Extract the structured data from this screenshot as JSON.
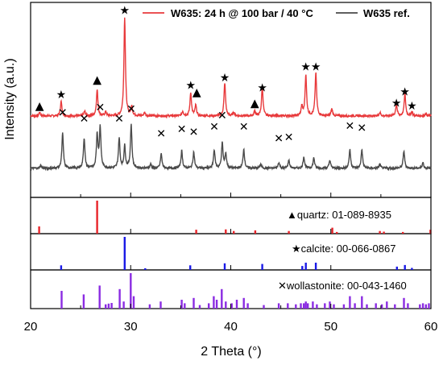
{
  "chart_data": {
    "type": "line",
    "xlabel": "2 Theta (°)",
    "ylabel": "Intensity (a.u.)",
    "xlim": [
      20,
      60
    ],
    "x_ticks": [
      20,
      30,
      40,
      50,
      60
    ],
    "legend_placement": "top-right",
    "series": [
      {
        "name": "W635: 24 h @ 100 bar / 40 °C",
        "color": "#e8393b",
        "baseline": 140,
        "peaks": [
          [
            20.9,
            6
          ],
          [
            23.05,
            25
          ],
          [
            25.4,
            8
          ],
          [
            26.65,
            45
          ],
          [
            27.5,
            7
          ],
          [
            29.4,
            170
          ],
          [
            30.1,
            16
          ],
          [
            31.4,
            6
          ],
          [
            35.2,
            8
          ],
          [
            36.0,
            40
          ],
          [
            36.5,
            18
          ],
          [
            39.4,
            57
          ],
          [
            40.3,
            6
          ],
          [
            42.4,
            8
          ],
          [
            43.15,
            50
          ],
          [
            47.1,
            16
          ],
          [
            47.5,
            70
          ],
          [
            48.5,
            74
          ],
          [
            50.1,
            12
          ],
          [
            54.9,
            6
          ],
          [
            56.55,
            20
          ],
          [
            57.4,
            38
          ],
          [
            58.1,
            7
          ],
          [
            59.5,
            4
          ]
        ],
        "markers": [
          {
            "x": 20.9,
            "y": 158,
            "symbol": "▲",
            "phase": "quartz"
          },
          {
            "x": 23.05,
            "y": 177,
            "symbol": "★",
            "phase": "calcite"
          },
          {
            "x": 26.65,
            "y": 203,
            "symbol": "▲",
            "phase": "quartz"
          },
          {
            "x": 29.4,
            "y": 322,
            "symbol": "★",
            "phase": "calcite"
          },
          {
            "x": 36.0,
            "y": 193,
            "symbol": "★",
            "phase": "calcite"
          },
          {
            "x": 36.6,
            "y": 181,
            "symbol": "▲",
            "phase": "quartz"
          },
          {
            "x": 39.4,
            "y": 206,
            "symbol": "★",
            "phase": "calcite"
          },
          {
            "x": 42.4,
            "y": 163,
            "symbol": "▲",
            "phase": "quartz"
          },
          {
            "x": 43.15,
            "y": 189,
            "symbol": "★",
            "phase": "calcite"
          },
          {
            "x": 47.5,
            "y": 225,
            "symbol": "★",
            "phase": "calcite"
          },
          {
            "x": 48.5,
            "y": 225,
            "symbol": "★",
            "phase": "calcite"
          },
          {
            "x": 56.55,
            "y": 163,
            "symbol": "★",
            "phase": "calcite"
          },
          {
            "x": 57.4,
            "y": 182,
            "symbol": "★",
            "phase": "calcite"
          },
          {
            "x": 58.1,
            "y": 158,
            "symbol": "★",
            "phase": "calcite"
          }
        ]
      },
      {
        "name": "W635 ref.",
        "color": "#4a4a4a",
        "baseline": 50,
        "peaks": [
          [
            21.0,
            5
          ],
          [
            23.2,
            60
          ],
          [
            25.35,
            52
          ],
          [
            26.65,
            58
          ],
          [
            26.95,
            70
          ],
          [
            28.85,
            52
          ],
          [
            29.4,
            38
          ],
          [
            30.05,
            75
          ],
          [
            32.0,
            7
          ],
          [
            33.05,
            25
          ],
          [
            35.1,
            30
          ],
          [
            36.3,
            28
          ],
          [
            38.35,
            32
          ],
          [
            39.15,
            43
          ],
          [
            39.5,
            25
          ],
          [
            41.3,
            33
          ],
          [
            43.0,
            7
          ],
          [
            44.8,
            10
          ],
          [
            45.8,
            14
          ],
          [
            47.3,
            20
          ],
          [
            48.3,
            18
          ],
          [
            49.9,
            14
          ],
          [
            51.9,
            32
          ],
          [
            53.1,
            32
          ],
          [
            54.9,
            7
          ],
          [
            57.3,
            30
          ],
          [
            59.2,
            10
          ]
        ],
        "markers": [
          {
            "x": 23.2,
            "y": 146,
            "symbol": "✕",
            "phase": "wollastonite"
          },
          {
            "x": 25.35,
            "y": 136,
            "symbol": "✕",
            "phase": "wollastonite"
          },
          {
            "x": 26.95,
            "y": 155,
            "symbol": "✕",
            "phase": "wollastonite"
          },
          {
            "x": 28.85,
            "y": 136,
            "symbol": "✕",
            "phase": "wollastonite"
          },
          {
            "x": 30.05,
            "y": 152,
            "symbol": "✕",
            "phase": "wollastonite"
          },
          {
            "x": 33.05,
            "y": 110,
            "symbol": "✕",
            "phase": "wollastonite"
          },
          {
            "x": 35.1,
            "y": 118,
            "symbol": "✕",
            "phase": "wollastonite"
          },
          {
            "x": 36.3,
            "y": 113,
            "symbol": "✕",
            "phase": "wollastonite"
          },
          {
            "x": 38.35,
            "y": 122,
            "symbol": "✕",
            "phase": "wollastonite"
          },
          {
            "x": 39.15,
            "y": 141,
            "symbol": "✕",
            "phase": "wollastonite"
          },
          {
            "x": 41.3,
            "y": 122,
            "symbol": "✕",
            "phase": "wollastonite"
          },
          {
            "x": 44.8,
            "y": 102,
            "symbol": "✕",
            "phase": "wollastonite"
          },
          {
            "x": 45.8,
            "y": 104,
            "symbol": "✕",
            "phase": "wollastonite"
          },
          {
            "x": 51.9,
            "y": 123,
            "symbol": "✕",
            "phase": "wollastonite"
          },
          {
            "x": 53.1,
            "y": 120,
            "symbol": "✕",
            "phase": "wollastonite"
          }
        ]
      }
    ],
    "reference_panels": [
      {
        "label": "▲quartz: 01-089-8935",
        "color": "#e8242a",
        "lines": [
          [
            20.85,
            0.22
          ],
          [
            26.65,
            1.0
          ],
          [
            36.55,
            0.12
          ],
          [
            39.5,
            0.13
          ],
          [
            40.3,
            0.08
          ],
          [
            42.45,
            0.1
          ],
          [
            45.8,
            0.08
          ],
          [
            50.15,
            0.18
          ],
          [
            50.6,
            0.05
          ],
          [
            54.9,
            0.08
          ],
          [
            55.3,
            0.06
          ],
          [
            57.2,
            0.05
          ],
          [
            59.95,
            0.12
          ]
        ]
      },
      {
        "label": "★calcite: 00-066-0867",
        "color": "#1a1ae6",
        "lines": [
          [
            23.05,
            0.14
          ],
          [
            29.4,
            1.0
          ],
          [
            31.45,
            0.05
          ],
          [
            35.95,
            0.14
          ],
          [
            39.4,
            0.2
          ],
          [
            43.15,
            0.18
          ],
          [
            47.15,
            0.12
          ],
          [
            47.5,
            0.22
          ],
          [
            48.5,
            0.22
          ],
          [
            56.6,
            0.1
          ],
          [
            57.4,
            0.15
          ],
          [
            58.1,
            0.06
          ]
        ]
      },
      {
        "label": "✕wollastonite: 00-043-1460",
        "color": "#8a2be2",
        "lines": [
          [
            23.1,
            0.5
          ],
          [
            25.3,
            0.4
          ],
          [
            26.9,
            0.65
          ],
          [
            27.5,
            0.12
          ],
          [
            27.8,
            0.14
          ],
          [
            28.1,
            0.16
          ],
          [
            28.9,
            0.55
          ],
          [
            29.3,
            0.2
          ],
          [
            30.0,
            1.0
          ],
          [
            30.3,
            0.35
          ],
          [
            31.9,
            0.12
          ],
          [
            33.0,
            0.2
          ],
          [
            35.1,
            0.25
          ],
          [
            35.4,
            0.15
          ],
          [
            36.3,
            0.3
          ],
          [
            36.9,
            0.1
          ],
          [
            37.8,
            0.15
          ],
          [
            38.3,
            0.35
          ],
          [
            38.6,
            0.25
          ],
          [
            39.1,
            0.55
          ],
          [
            39.5,
            0.2
          ],
          [
            40.1,
            0.15
          ],
          [
            40.6,
            0.25
          ],
          [
            41.3,
            0.3
          ],
          [
            41.7,
            0.15
          ],
          [
            43.3,
            0.1
          ],
          [
            44.8,
            0.15
          ],
          [
            45.7,
            0.15
          ],
          [
            46.5,
            0.12
          ],
          [
            47.0,
            0.15
          ],
          [
            47.3,
            0.15
          ],
          [
            47.5,
            0.2
          ],
          [
            47.7,
            0.15
          ],
          [
            48.2,
            0.2
          ],
          [
            48.6,
            0.12
          ],
          [
            49.4,
            0.15
          ],
          [
            49.9,
            0.2
          ],
          [
            50.3,
            0.12
          ],
          [
            51.3,
            0.12
          ],
          [
            51.9,
            0.35
          ],
          [
            52.4,
            0.15
          ],
          [
            53.1,
            0.35
          ],
          [
            53.6,
            0.12
          ],
          [
            54.5,
            0.15
          ],
          [
            55.1,
            0.12
          ],
          [
            55.6,
            0.2
          ],
          [
            56.4,
            0.12
          ],
          [
            57.3,
            0.3
          ],
          [
            57.7,
            0.15
          ],
          [
            58.9,
            0.12
          ],
          [
            59.2,
            0.15
          ],
          [
            59.5,
            0.12
          ],
          [
            59.8,
            0.15
          ]
        ]
      }
    ]
  }
}
